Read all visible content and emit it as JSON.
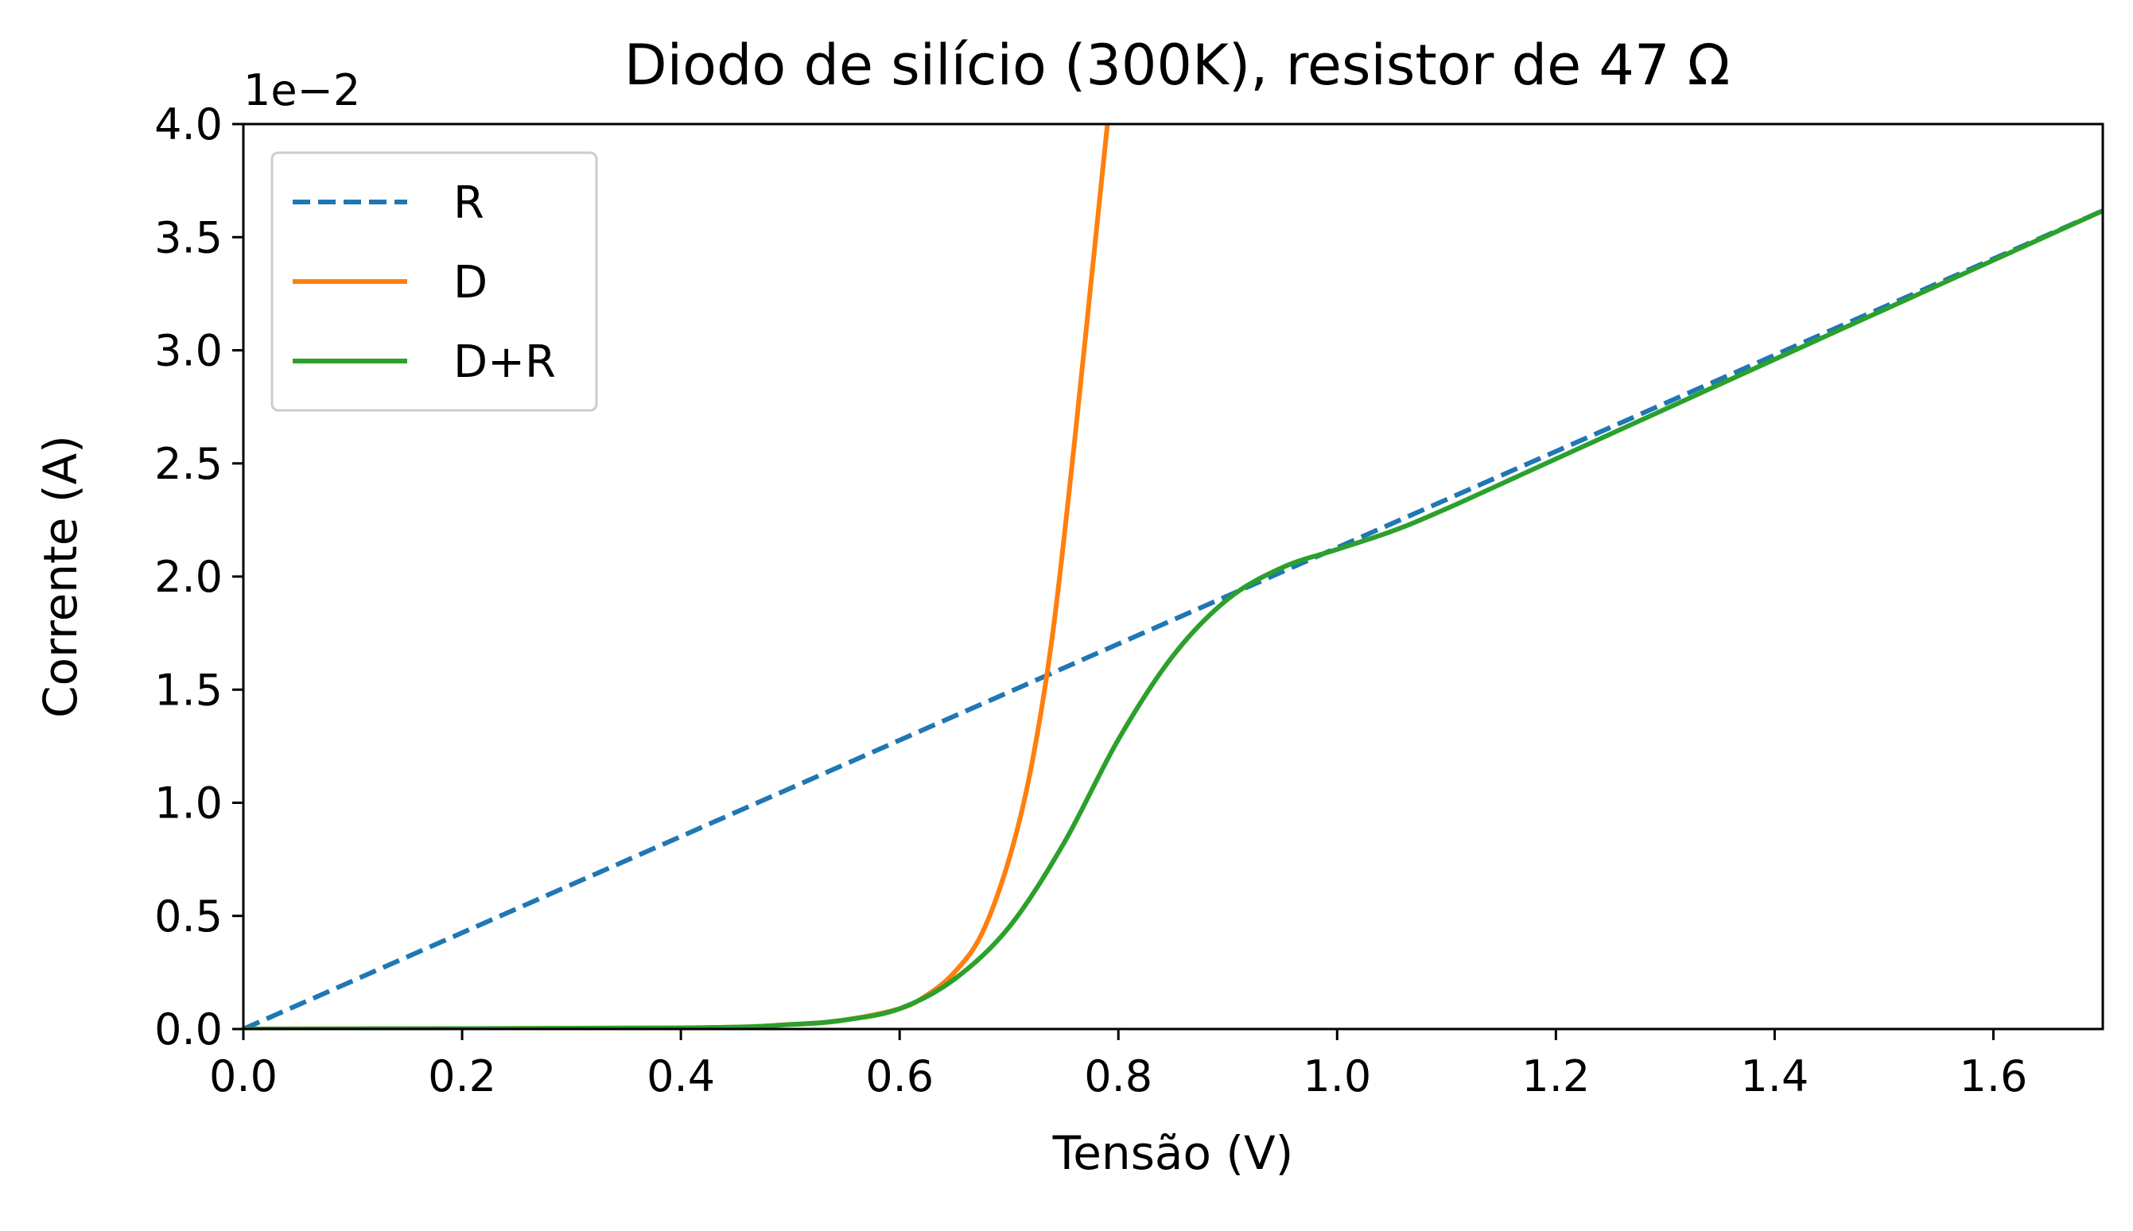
{
  "chart_data": {
    "type": "line",
    "title": "Diodo de silício (300K), resistor de 47 Ω",
    "xlabel": "Tensão (V)",
    "ylabel": "Corrente (A)",
    "y_offset_label": "1e−2",
    "xlim": [
      0.0,
      1.7
    ],
    "ylim": [
      0.0,
      4.0
    ],
    "x_ticks": [
      "0.0",
      "0.2",
      "0.4",
      "0.6",
      "0.8",
      "1.0",
      "1.2",
      "1.4",
      "1.6"
    ],
    "y_ticks": [
      "0.0",
      "0.5",
      "1.0",
      "1.5",
      "2.0",
      "2.5",
      "3.0",
      "3.5",
      "4.0"
    ],
    "grid": false,
    "legend_position": "top-left",
    "series": [
      {
        "name": "R",
        "color": "#1f77b4",
        "style": "dashed",
        "x": [
          0.0,
          1.7
        ],
        "y": [
          0.0,
          3.617
        ]
      },
      {
        "name": "D",
        "color": "#ff7f0e",
        "style": "solid",
        "x": [
          0.0,
          0.4,
          0.5,
          0.55,
          0.6,
          0.625,
          0.65,
          0.675,
          0.7,
          0.72,
          0.74,
          0.76,
          0.775,
          0.79
        ],
        "y": [
          0.0,
          0.005,
          0.02,
          0.04,
          0.09,
          0.15,
          0.25,
          0.42,
          0.75,
          1.15,
          1.75,
          2.6,
          3.3,
          4.0
        ]
      },
      {
        "name": "D+R",
        "color": "#2ca02c",
        "style": "solid",
        "x": [
          0.0,
          0.4,
          0.5,
          0.55,
          0.6,
          0.65,
          0.7,
          0.75,
          0.8,
          0.85,
          0.9,
          0.95,
          1.0,
          1.05,
          1.1,
          1.2,
          1.4,
          1.7
        ],
        "y": [
          0.0,
          0.005,
          0.02,
          0.04,
          0.09,
          0.22,
          0.45,
          0.82,
          1.28,
          1.65,
          1.9,
          2.04,
          2.12,
          2.2,
          2.3,
          2.52,
          2.96,
          3.617
        ]
      }
    ]
  }
}
